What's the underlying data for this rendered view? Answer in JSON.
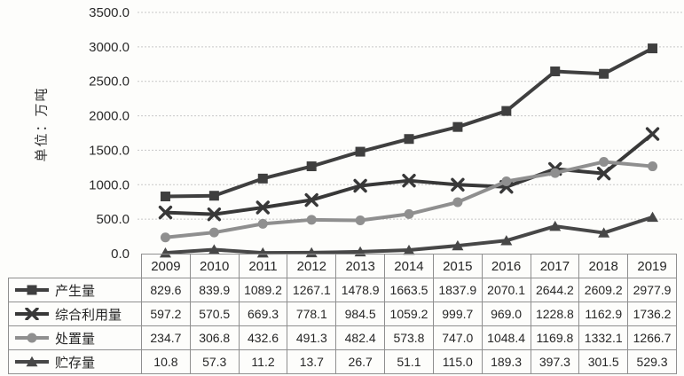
{
  "chart_data": {
    "type": "line",
    "title": "",
    "ylabel": "单位：万吨",
    "xlabel": "",
    "categories": [
      "2009",
      "2010",
      "2011",
      "2012",
      "2013",
      "2014",
      "2015",
      "2016",
      "2017",
      "2018",
      "2019"
    ],
    "series": [
      {
        "id": "production",
        "name": "产生量",
        "marker": "square",
        "color": "#3f3f3f",
        "values": [
          829.6,
          839.9,
          1089.2,
          1267.1,
          1478.9,
          1663.5,
          1837.9,
          2070.1,
          2644.2,
          2609.2,
          2977.9
        ]
      },
      {
        "id": "utilization",
        "name": "综合利用量",
        "marker": "x",
        "color": "#383838",
        "values": [
          597.2,
          570.5,
          669.3,
          778.1,
          984.5,
          1059.2,
          999.7,
          969.0,
          1228.8,
          1162.9,
          1736.2
        ]
      },
      {
        "id": "disposal",
        "name": "处置量",
        "marker": "circle",
        "color": "#8f8f8f",
        "values": [
          234.7,
          306.8,
          432.6,
          491.3,
          482.4,
          573.8,
          747.0,
          1048.4,
          1169.8,
          1332.1,
          1266.7
        ]
      },
      {
        "id": "storage",
        "name": "贮存量",
        "marker": "triangle",
        "color": "#474747",
        "values": [
          10.8,
          57.3,
          11.2,
          13.7,
          26.7,
          51.1,
          115.0,
          189.3,
          397.3,
          301.5,
          529.3
        ]
      }
    ],
    "ylim": [
      0,
      3500
    ],
    "ytick_step": 500,
    "ytick_labels": [
      "0.0",
      "500.0",
      "1000.0",
      "1500.0",
      "2000.0",
      "2500.0",
      "3000.0",
      "3500.0"
    ],
    "grid": "horizontal-dashed",
    "legend_position": "data-table-left-column"
  },
  "colors": {
    "background": "#fdfdfb",
    "gridline": "#c7c7c7",
    "axis_text": "#2b2b2b",
    "table_border": "#8f8f8f",
    "table_text": "#262626"
  }
}
